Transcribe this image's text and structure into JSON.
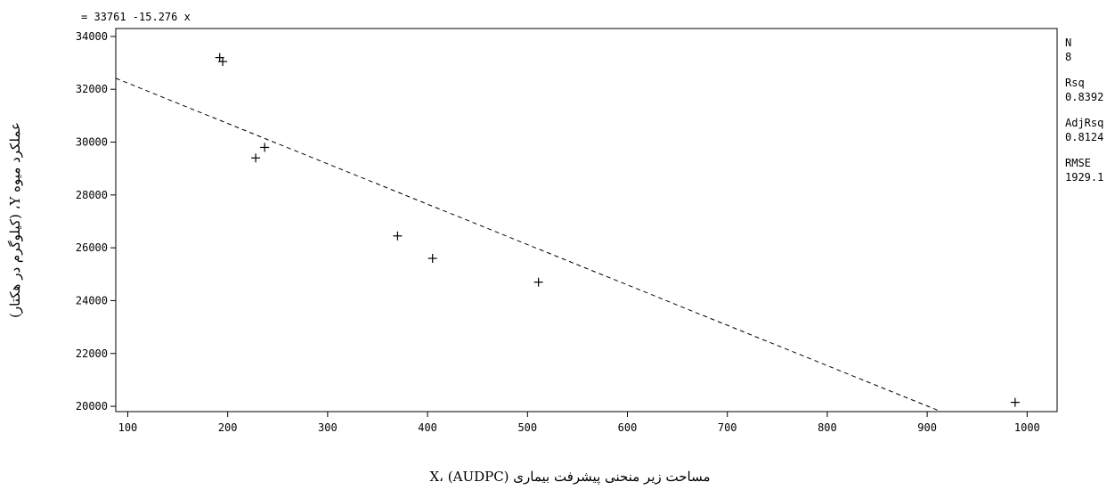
{
  "chart_data": {
    "type": "scatter",
    "equation": "= 33761 -15.276 x",
    "xlabel": "مساحت زیر منحنی پیشرفت بیماری X، (AUDPC)",
    "ylabel": "عملکرد میوه Y، (کیلوگرم در هکتار)",
    "xlim": [
      88,
      1030
    ],
    "ylim": [
      19800,
      34300
    ],
    "xticks": [
      100,
      200,
      300,
      400,
      500,
      600,
      700,
      800,
      900,
      1000
    ],
    "yticks": [
      20000,
      22000,
      24000,
      26000,
      28000,
      30000,
      32000,
      34000
    ],
    "x": [
      192,
      195,
      228,
      237,
      370,
      405,
      511,
      988
    ],
    "y": [
      33200,
      33050,
      29400,
      29800,
      26450,
      25600,
      24700,
      20150
    ],
    "fit": {
      "intercept": 33761,
      "slope": -15.276,
      "style": "dashed"
    },
    "stats": [
      {
        "label": "N",
        "value": "8"
      },
      {
        "label": "Rsq",
        "value": "0.8392"
      },
      {
        "label": "AdjRsq",
        "value": "0.8124"
      },
      {
        "label": "RMSE",
        "value": "1929.1"
      }
    ],
    "grid": false,
    "marker": "plus"
  }
}
